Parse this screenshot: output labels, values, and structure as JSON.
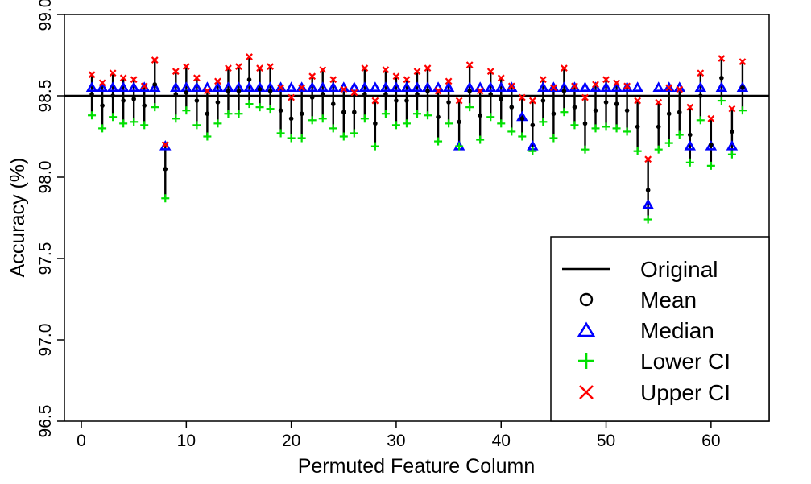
{
  "chart_data": {
    "type": "scatter",
    "xlabel": "Permuted Feature Column",
    "ylabel": "Accuracy (%)",
    "xlim": [
      -1,
      65
    ],
    "ylim": [
      96.5,
      99.0
    ],
    "xticks": [
      0,
      10,
      20,
      30,
      40,
      50,
      60
    ],
    "yticks": [
      96.5,
      97.0,
      97.5,
      98.0,
      98.5,
      99.0
    ],
    "xtick_labels": [
      "0",
      "10",
      "20",
      "30",
      "40",
      "50",
      "60"
    ],
    "ytick_labels": [
      "96.5",
      "97.0",
      "97.5",
      "98.0",
      "98.5",
      "99.0"
    ],
    "original": 98.5,
    "legend_position": "bottom-right",
    "grid": false,
    "colors": {
      "original": "#000000",
      "mean": "#000000",
      "median": "#0000ff",
      "lower": "#00e000",
      "upper": "#ff0000"
    },
    "legend": [
      {
        "key": "original",
        "symbol": "line",
        "label": "Original"
      },
      {
        "key": "mean",
        "symbol": "circle",
        "label": "Mean"
      },
      {
        "key": "median",
        "symbol": "triangle",
        "label": "Median"
      },
      {
        "key": "lower",
        "symbol": "plus",
        "label": "Lower CI"
      },
      {
        "key": "upper",
        "symbol": "cross",
        "label": "Upper CI"
      }
    ],
    "x": [
      1,
      2,
      3,
      4,
      5,
      6,
      7,
      8,
      9,
      10,
      11,
      12,
      13,
      14,
      15,
      16,
      17,
      18,
      19,
      20,
      21,
      22,
      23,
      24,
      25,
      26,
      27,
      28,
      29,
      30,
      31,
      32,
      33,
      34,
      35,
      36,
      37,
      38,
      39,
      40,
      41,
      42,
      43,
      44,
      45,
      46,
      47,
      48,
      49,
      50,
      51,
      52,
      53,
      54,
      55,
      56,
      57,
      58,
      59,
      60,
      61,
      62,
      63
    ],
    "series": [
      {
        "name": "Mean",
        "values": [
          98.51,
          98.44,
          98.5,
          98.47,
          98.48,
          98.44,
          98.57,
          98.05,
          98.51,
          98.52,
          98.47,
          98.39,
          98.46,
          98.53,
          98.53,
          98.6,
          98.54,
          98.53,
          98.41,
          98.36,
          98.39,
          98.49,
          98.51,
          98.45,
          98.4,
          98.4,
          98.51,
          98.33,
          98.51,
          98.47,
          98.47,
          98.51,
          98.53,
          98.37,
          98.46,
          98.34,
          98.53,
          98.38,
          98.51,
          98.48,
          98.43,
          98.36,
          98.32,
          98.47,
          98.39,
          98.53,
          98.43,
          98.33,
          98.41,
          98.46,
          98.45,
          98.41,
          98.31,
          97.92,
          98.31,
          98.39,
          98.4,
          98.26,
          98.5,
          98.2,
          98.61,
          98.28,
          98.55
        ]
      },
      {
        "name": "Median",
        "values": [
          98.55,
          98.55,
          98.55,
          98.55,
          98.55,
          98.55,
          98.55,
          98.19,
          98.55,
          98.55,
          98.55,
          98.55,
          98.55,
          98.55,
          98.55,
          98.55,
          98.55,
          98.55,
          98.55,
          98.55,
          98.55,
          98.55,
          98.55,
          98.55,
          98.55,
          98.55,
          98.55,
          98.55,
          98.55,
          98.55,
          98.55,
          98.55,
          98.55,
          98.55,
          98.55,
          98.19,
          98.55,
          98.55,
          98.55,
          98.55,
          98.55,
          98.37,
          98.19,
          98.55,
          98.55,
          98.55,
          98.55,
          98.55,
          98.55,
          98.55,
          98.55,
          98.55,
          98.55,
          97.83,
          98.55,
          98.55,
          98.55,
          98.19,
          98.55,
          98.19,
          98.55,
          98.19,
          98.55
        ]
      },
      {
        "name": "Lower CI",
        "values": [
          98.38,
          98.3,
          98.37,
          98.33,
          98.34,
          98.32,
          98.43,
          97.87,
          98.36,
          98.41,
          98.32,
          98.25,
          98.33,
          98.39,
          98.39,
          98.45,
          98.43,
          98.42,
          98.27,
          98.24,
          98.24,
          98.35,
          98.36,
          98.3,
          98.25,
          98.27,
          98.36,
          98.19,
          98.39,
          98.32,
          98.33,
          98.39,
          98.38,
          98.22,
          98.33,
          98.19,
          98.43,
          98.23,
          98.37,
          98.33,
          98.28,
          98.25,
          98.16,
          98.34,
          98.24,
          98.4,
          98.32,
          98.17,
          98.3,
          98.31,
          98.3,
          98.28,
          98.16,
          97.74,
          98.17,
          98.21,
          98.26,
          98.09,
          98.35,
          98.07,
          98.47,
          98.14,
          98.41
        ]
      },
      {
        "name": "Upper CI",
        "values": [
          98.63,
          98.58,
          98.64,
          98.61,
          98.6,
          98.56,
          98.72,
          98.2,
          98.65,
          98.68,
          98.61,
          98.53,
          98.59,
          98.67,
          98.68,
          98.74,
          98.67,
          98.68,
          98.55,
          98.49,
          98.55,
          98.62,
          98.66,
          98.6,
          98.54,
          98.52,
          98.67,
          98.47,
          98.66,
          98.62,
          98.6,
          98.65,
          98.67,
          98.53,
          98.59,
          98.47,
          98.69,
          98.53,
          98.65,
          98.61,
          98.56,
          98.49,
          98.47,
          98.6,
          98.55,
          98.67,
          98.56,
          98.49,
          98.57,
          98.6,
          98.58,
          98.56,
          98.47,
          98.11,
          98.46,
          98.55,
          98.54,
          98.43,
          98.64,
          98.36,
          98.73,
          98.42,
          98.71
        ]
      }
    ]
  }
}
